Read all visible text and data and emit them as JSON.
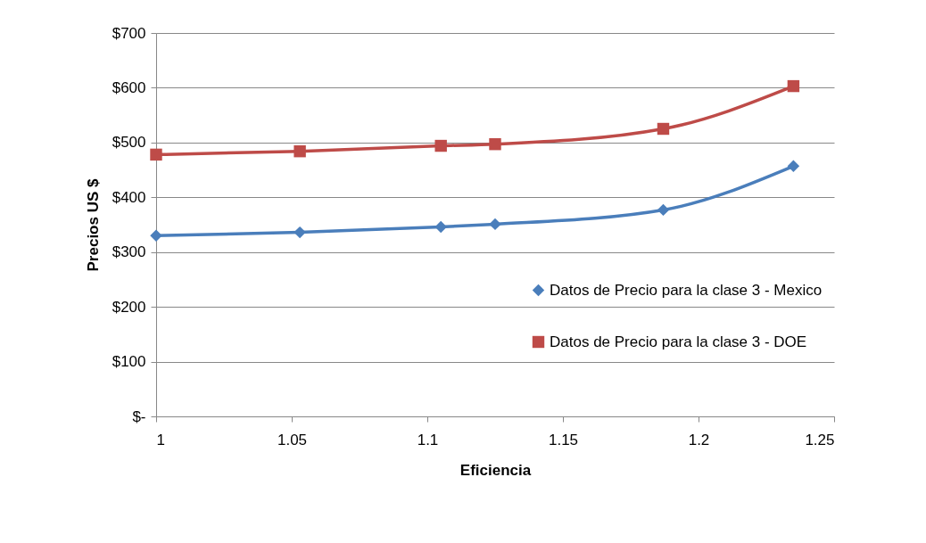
{
  "chart_data": {
    "type": "line",
    "xlabel": "Eficiencia",
    "ylabel": "Precios US $",
    "x": [
      1,
      1.053,
      1.105,
      1.125,
      1.187,
      1.235
    ],
    "series": [
      {
        "name": "Datos de Precio para la clase 3 - Mexico",
        "color": "#4a7ebb",
        "marker": "diamond",
        "values": [
          330,
          336,
          346,
          351,
          377,
          457
        ]
      },
      {
        "name": "Datos de Precio para la clase 3 - DOE",
        "color": "#be4b48",
        "marker": "square",
        "values": [
          478,
          484,
          494,
          497,
          525,
          603
        ]
      }
    ],
    "xlim": [
      1,
      1.25
    ],
    "xticks": [
      1,
      1.05,
      1.1,
      1.15,
      1.2,
      1.25
    ],
    "ylim": [
      0,
      700
    ],
    "yticks": [
      {
        "value": 0,
        "label": "$-"
      },
      {
        "value": 100,
        "label": "$100"
      },
      {
        "value": 200,
        "label": "$200"
      },
      {
        "value": 300,
        "label": "$300"
      },
      {
        "value": 400,
        "label": "$400"
      },
      {
        "value": 500,
        "label": "$500"
      },
      {
        "value": 600,
        "label": "$600"
      },
      {
        "value": 700,
        "label": "$700"
      }
    ],
    "grid": "y",
    "legend": "right",
    "line_style": "solid"
  }
}
